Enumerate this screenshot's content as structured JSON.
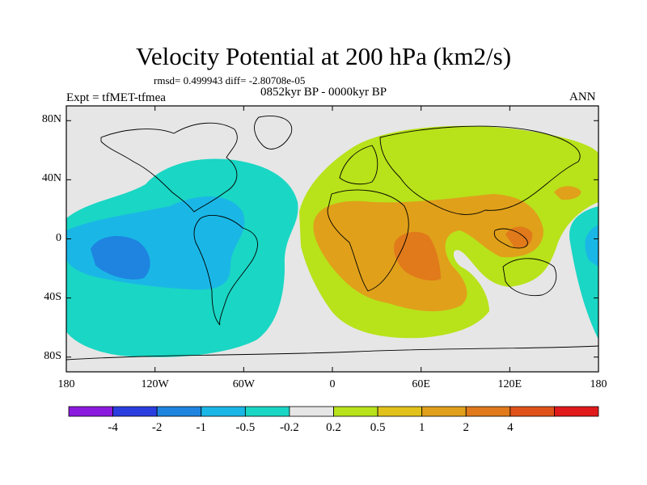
{
  "title": "Velocity Potential at 200 hPa (km2/s)",
  "stats": "rmsd= 0.499943 diff= -2.80708e-05",
  "experiment": "Expt = tfMET-tfmea",
  "period": "0852kyr BP - 0000kyr BP",
  "season": "ANN",
  "map": {
    "projection": "cylindrical equidistant",
    "lat_ticks": [
      {
        "value": 80,
        "label": "80N"
      },
      {
        "value": 40,
        "label": "40N"
      },
      {
        "value": 0,
        "label": "0"
      },
      {
        "value": -40,
        "label": "40S"
      },
      {
        "value": -80,
        "label": "80S"
      }
    ],
    "lon_ticks": [
      {
        "value": -180,
        "label": "180"
      },
      {
        "value": -120,
        "label": "120W"
      },
      {
        "value": -60,
        "label": "60W"
      },
      {
        "value": 0,
        "label": "0"
      },
      {
        "value": 60,
        "label": "60E"
      },
      {
        "value": 120,
        "label": "120E"
      },
      {
        "value": 180,
        "label": "180"
      }
    ],
    "background_color": "#e6e6e6"
  },
  "colorbar": {
    "colors": [
      "#8b1adf",
      "#2a3ee0",
      "#1e84e0",
      "#1ab7e6",
      "#1ad6c4",
      "#e6e6e6",
      "#b8e21a",
      "#e2c21a",
      "#e0a01a",
      "#e07a1a",
      "#e0521a",
      "#e01a1a"
    ],
    "labels": [
      "-4",
      "-2",
      "-1",
      "-0.5",
      "-0.2",
      "0.2",
      "0.5",
      "1",
      "2",
      "4"
    ]
  }
}
